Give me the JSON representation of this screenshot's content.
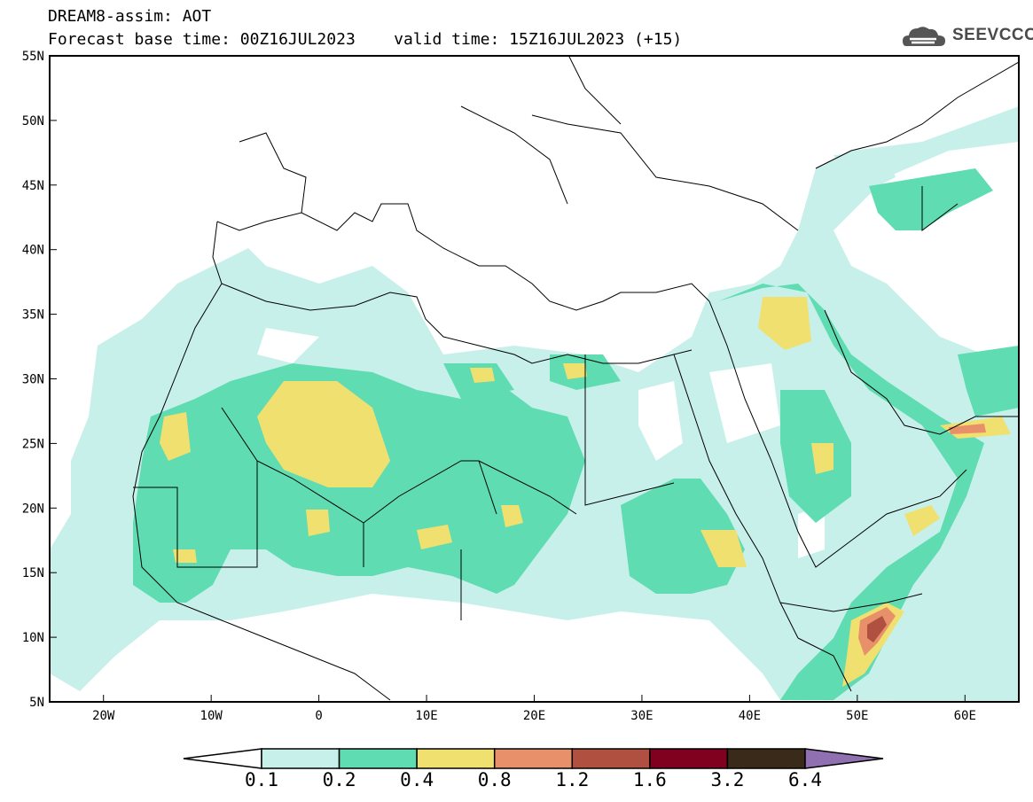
{
  "header": {
    "title": "DREAM8-assim: AOT",
    "subtitle": "Forecast base time: 00Z16JUL2023    valid time: 15Z16JUL2023 (+15)"
  },
  "logo": {
    "text": "SEEVCCC"
  },
  "map": {
    "lat_labels": [
      "55N",
      "50N",
      "45N",
      "40N",
      "35N",
      "30N",
      "25N",
      "20N",
      "15N",
      "10N",
      "5N"
    ],
    "lon_labels": [
      "20W",
      "10W",
      "0",
      "10E",
      "20E",
      "30E",
      "40E",
      "50E",
      "60E"
    ]
  },
  "colorbar": {
    "labels": [
      "0.1",
      "0.2",
      "0.4",
      "0.8",
      "1.2",
      "1.6",
      "3.2",
      "6.4"
    ],
    "colors": [
      "#ffffff",
      "#c8f0ea",
      "#5fdcb2",
      "#f0e070",
      "#e8906a",
      "#b05040",
      "#800020",
      "#3a2a1a",
      "#9070b0"
    ]
  },
  "colors": {
    "c1": "#c8f0ea",
    "c2": "#5fdcb2",
    "c3": "#f0e070",
    "c4": "#e8906a",
    "c5": "#b05040"
  }
}
